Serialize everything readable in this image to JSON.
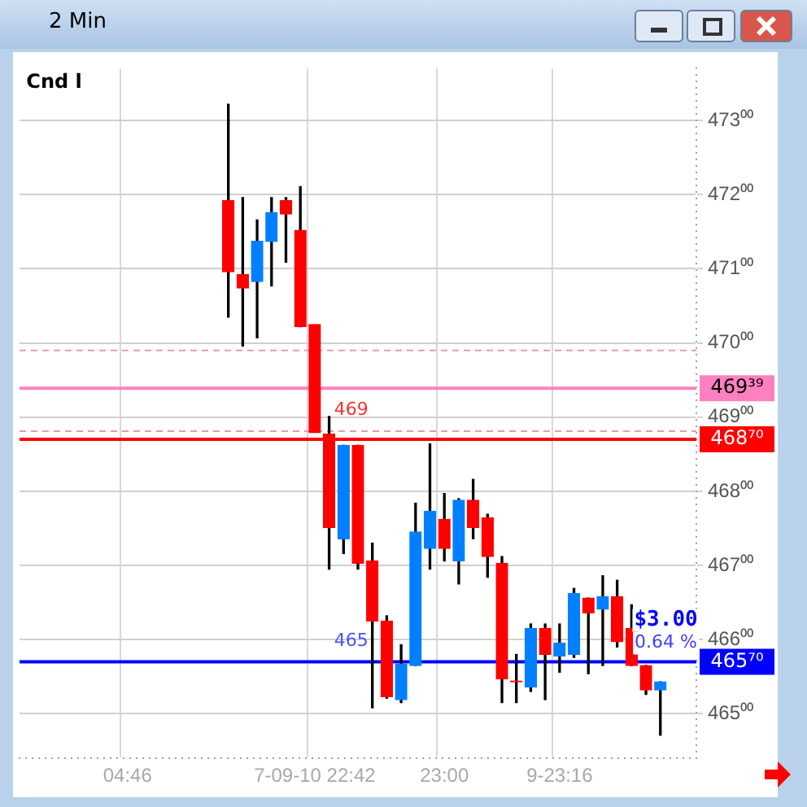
{
  "chart_data": {
    "type": "candlestick",
    "title": "2 Min",
    "categories": [
      null,
      null,
      null,
      null,
      null,
      null,
      null,
      "04:46",
      null,
      null,
      null,
      null,
      null,
      null,
      null,
      null,
      null,
      null,
      null,
      null,
      "7-09-10 22:42",
      null,
      null,
      null,
      null,
      null,
      null,
      null,
      null,
      "23:00",
      null,
      null,
      null,
      null,
      null,
      null,
      null,
      "9-23:16",
      null,
      null,
      null,
      null,
      null,
      null,
      null,
      null,
      null
    ],
    "ohlc": [
      null,
      null,
      null,
      null,
      null,
      null,
      null,
      null,
      null,
      null,
      null,
      null,
      null,
      null,
      [
        471.92,
        473.22,
        470.35,
        470.96
      ],
      [
        470.92,
        471.96,
        469.96,
        470.74
      ],
      [
        470.83,
        471.66,
        470.07,
        471.37
      ],
      [
        471.37,
        471.96,
        470.77,
        471.76
      ],
      [
        471.92,
        471.96,
        471.09,
        471.74
      ],
      [
        471.52,
        472.11,
        470.22,
        470.22
      ],
      [
        470.25,
        470.25,
        468.79,
        468.79
      ],
      [
        468.77,
        469.01,
        466.95,
        467.51
      ],
      [
        467.36,
        468.62,
        467.16,
        468.62
      ],
      [
        468.62,
        468.62,
        466.95,
        467.03
      ],
      [
        467.06,
        467.3,
        465.08,
        466.25
      ],
      [
        466.25,
        466.32,
        465.21,
        465.23
      ],
      [
        465.19,
        465.93,
        465.15,
        465.67
      ],
      [
        465.65,
        467.84,
        465.65,
        467.45
      ],
      [
        467.23,
        468.64,
        466.95,
        467.73
      ],
      [
        467.62,
        467.97,
        467.06,
        467.23
      ],
      [
        467.06,
        467.9,
        466.75,
        467.88
      ],
      [
        467.88,
        468.16,
        467.36,
        467.51
      ],
      [
        467.64,
        467.69,
        466.84,
        467.12
      ],
      [
        467.03,
        467.12,
        465.15,
        465.47
      ],
      [
        465.44,
        465.8,
        465.15,
        465.43
      ],
      [
        465.36,
        466.21,
        465.3,
        466.15
      ],
      [
        466.15,
        466.21,
        465.19,
        465.8
      ],
      [
        465.78,
        466.21,
        465.56,
        465.95
      ],
      [
        465.8,
        466.69,
        465.76,
        466.62
      ],
      [
        466.56,
        466.56,
        465.54,
        466.36
      ],
      [
        466.41,
        466.86,
        465.65,
        466.58
      ],
      [
        466.58,
        466.8,
        465.9,
        465.97
      ],
      [
        466.15,
        466.47,
        465.65,
        465.65
      ],
      [
        465.65,
        465.65,
        465.26,
        465.32
      ],
      [
        465.32,
        465.43,
        464.71,
        465.43
      ],
      null,
      null
    ],
    "colors": [
      null,
      null,
      null,
      null,
      null,
      null,
      null,
      null,
      null,
      null,
      null,
      null,
      null,
      null,
      "#ff0000",
      "#ff0000",
      "#0080ff",
      "#0080ff",
      "#ff0000",
      "#ff0000",
      "#ff0000",
      "#ff0000",
      "#0080ff",
      "#ff0000",
      "#ff0000",
      "#ff0000",
      "#0080ff",
      "#0080ff",
      "#0080ff",
      "#ff0000",
      "#0080ff",
      "#ff0000",
      "#ff0000",
      "#ff0000",
      "#ff0000",
      "#0080ff",
      "#ff0000",
      "#0080ff",
      "#0080ff",
      "#ff0000",
      "#0080ff",
      "#ff0000",
      "#ff0000",
      "#ff0000",
      "#0080ff",
      null,
      null
    ],
    "ylim": [
      464.4,
      473.7
    ],
    "yticks": [
      {
        "value": 465,
        "label": "465⁰⁰"
      },
      {
        "value": 466,
        "label": "466⁰⁰"
      },
      {
        "value": 467,
        "label": "467⁰⁰"
      },
      {
        "value": 468,
        "label": "468⁰⁰"
      },
      {
        "value": 469,
        "label": "469⁰⁰"
      },
      {
        "value": 470,
        "label": "470⁰⁰"
      },
      {
        "value": 471,
        "label": "471⁰⁰"
      },
      {
        "value": 472,
        "label": "472⁰⁰"
      },
      {
        "value": 473,
        "label": "473⁰⁰"
      }
    ],
    "grid": true,
    "legend": false,
    "ref_lines": [
      {
        "axis": "y",
        "value": 469.9,
        "color": "#e898c0",
        "line_style": "dashed"
      },
      {
        "axis": "y",
        "value": 468.81,
        "color": "#e898c0",
        "line_style": "dashed"
      },
      {
        "axis": "y",
        "value": 469.39,
        "label": "469³⁹",
        "color": "#ff80c0"
      },
      {
        "axis": "y",
        "value": 468.7,
        "label": "468⁷⁰",
        "color": "#ff0000"
      },
      {
        "axis": "y",
        "value": 465.7,
        "label": "465⁷⁰",
        "color": "#0000ff"
      }
    ],
    "annotations": [
      "Cnd l",
      "469",
      "465",
      "$3.00",
      "0.64 %"
    ]
  }
}
